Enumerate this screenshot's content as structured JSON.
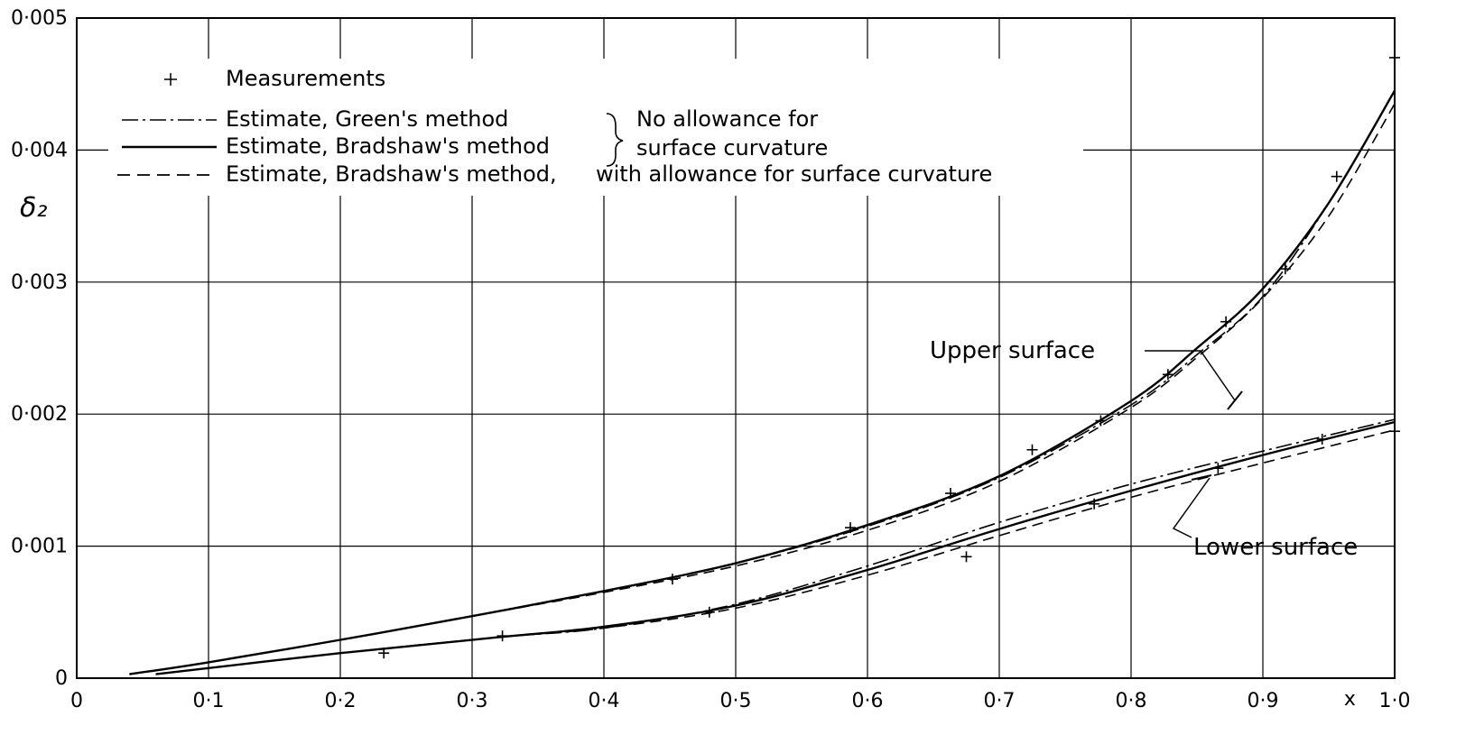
{
  "chart_data": {
    "type": "line",
    "xlabel": "x",
    "ylabel": "δ₂",
    "xlim": [
      0,
      1.0
    ],
    "ylim": [
      0,
      0.005
    ],
    "grid": true,
    "x_ticks": [
      0,
      0.1,
      0.2,
      0.3,
      0.4,
      0.5,
      0.6,
      0.7,
      0.8,
      0.9,
      1.0
    ],
    "x_tick_labels": [
      "0",
      "0·1",
      "0·2",
      "0·3",
      "0·4",
      "0·5",
      "0·6",
      "0·7",
      "0·8",
      "0·9",
      "1·0"
    ],
    "y_ticks": [
      0,
      0.001,
      0.002,
      0.003,
      0.004,
      0.005
    ],
    "y_tick_labels": [
      "0",
      "0·001",
      "0·002",
      "0·003",
      "0·004",
      "0·005"
    ],
    "legend": {
      "placement": "top-left",
      "entries": [
        {
          "style": "marker",
          "label": "Measurements"
        },
        {
          "style": "dashdot",
          "label": "Estimate, Green's method"
        },
        {
          "style": "solid",
          "label": "Estimate, Bradshaw's method"
        },
        {
          "style": "dashed",
          "label": "Estimate, Bradshaw's method,"
        }
      ],
      "brace_label_line1": "No allowance for",
      "brace_label_line2": "surface curvature",
      "dashed_suffix": "with allowance for surface curvature"
    },
    "annotations": {
      "upper": "Upper surface",
      "lower": "Lower surface"
    },
    "series": [
      {
        "surface": "upper",
        "method": "green",
        "style": "dashdot",
        "x": [
          0.04,
          0.1,
          0.2,
          0.3,
          0.4,
          0.5,
          0.6,
          0.7,
          0.8,
          0.85,
          0.9,
          0.95,
          1.0
        ],
        "y": [
          3e-05,
          0.00012,
          0.00029,
          0.00047,
          0.00066,
          0.00087,
          0.00115,
          0.00152,
          0.00207,
          0.00245,
          0.00289,
          0.0036,
          0.00445
        ]
      },
      {
        "surface": "upper",
        "method": "bradshaw",
        "style": "solid",
        "x": [
          0.04,
          0.1,
          0.2,
          0.3,
          0.4,
          0.5,
          0.6,
          0.7,
          0.8,
          0.85,
          0.9,
          0.95,
          1.0
        ],
        "y": [
          3e-05,
          0.00012,
          0.00029,
          0.00047,
          0.00066,
          0.00087,
          0.00116,
          0.00153,
          0.0021,
          0.0025,
          0.00295,
          0.0036,
          0.00445
        ]
      },
      {
        "surface": "upper",
        "method": "bradshaw_curvature",
        "style": "dashed",
        "x": [
          0.04,
          0.1,
          0.2,
          0.3,
          0.4,
          0.5,
          0.6,
          0.7,
          0.8,
          0.85,
          0.9,
          0.95,
          1.0
        ],
        "y": [
          3e-05,
          0.00012,
          0.00029,
          0.00047,
          0.00065,
          0.00085,
          0.00112,
          0.00149,
          0.00205,
          0.00243,
          0.00288,
          0.0035,
          0.00435
        ]
      },
      {
        "surface": "lower",
        "method": "green",
        "style": "dashdot",
        "x": [
          0.06,
          0.2,
          0.32,
          0.4,
          0.5,
          0.6,
          0.7,
          0.8,
          0.9,
          1.0
        ],
        "y": [
          3e-05,
          0.00019,
          0.00031,
          0.00038,
          0.00056,
          0.00085,
          0.00118,
          0.00147,
          0.00172,
          0.00196
        ]
      },
      {
        "surface": "lower",
        "method": "bradshaw",
        "style": "solid",
        "x": [
          0.06,
          0.2,
          0.32,
          0.4,
          0.5,
          0.6,
          0.7,
          0.8,
          0.9,
          1.0
        ],
        "y": [
          3e-05,
          0.00019,
          0.00031,
          0.00039,
          0.00055,
          0.00082,
          0.00113,
          0.00142,
          0.00169,
          0.00194
        ]
      },
      {
        "surface": "lower",
        "method": "bradshaw_curvature",
        "style": "dashed",
        "x": [
          0.06,
          0.2,
          0.32,
          0.4,
          0.5,
          0.6,
          0.7,
          0.8,
          0.9,
          1.0
        ],
        "y": [
          3e-05,
          0.00019,
          0.00031,
          0.00038,
          0.00053,
          0.00078,
          0.00108,
          0.00137,
          0.00163,
          0.00188
        ]
      }
    ],
    "measurements": [
      {
        "surface": "lower",
        "x": 0.233,
        "y": 0.00019
      },
      {
        "surface": "lower",
        "x": 0.323,
        "y": 0.00032
      },
      {
        "surface": "upper",
        "x": 0.452,
        "y": 0.00075
      },
      {
        "surface": "lower",
        "x": 0.48,
        "y": 0.0005
      },
      {
        "surface": "upper",
        "x": 0.587,
        "y": 0.00114
      },
      {
        "surface": "upper",
        "x": 0.663,
        "y": 0.0014
      },
      {
        "surface": "lower",
        "x": 0.675,
        "y": 0.00092
      },
      {
        "surface": "upper",
        "x": 0.725,
        "y": 0.00173
      },
      {
        "surface": "lower",
        "x": 0.772,
        "y": 0.00132
      },
      {
        "surface": "upper",
        "x": 0.777,
        "y": 0.00195
      },
      {
        "surface": "upper",
        "x": 0.828,
        "y": 0.0023
      },
      {
        "surface": "lower",
        "x": 0.866,
        "y": 0.00159
      },
      {
        "surface": "upper",
        "x": 0.872,
        "y": 0.0027
      },
      {
        "surface": "upper",
        "x": 0.917,
        "y": 0.0031
      },
      {
        "surface": "lower",
        "x": 0.945,
        "y": 0.00181
      },
      {
        "surface": "upper",
        "x": 0.956,
        "y": 0.0038
      },
      {
        "surface": "lower",
        "x": 1.0,
        "y": 0.00187
      },
      {
        "surface": "upper",
        "x": 1.0,
        "y": 0.0047
      }
    ]
  }
}
